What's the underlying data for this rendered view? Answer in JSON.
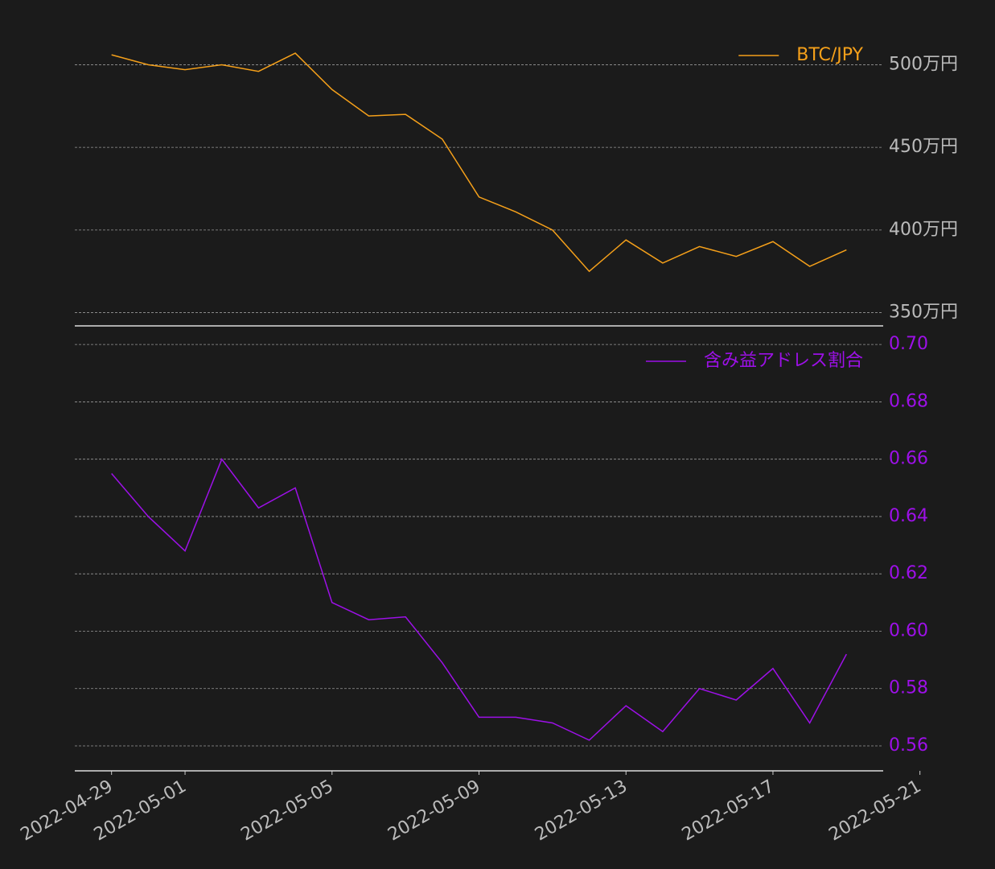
{
  "chart_data": [
    {
      "type": "line",
      "x": [
        "2022-04-29",
        "2022-04-30",
        "2022-05-01",
        "2022-05-02",
        "2022-05-03",
        "2022-05-04",
        "2022-05-05",
        "2022-05-06",
        "2022-05-07",
        "2022-05-08",
        "2022-05-09",
        "2022-05-10",
        "2022-05-11",
        "2022-05-12",
        "2022-05-13",
        "2022-05-14",
        "2022-05-15",
        "2022-05-16",
        "2022-05-17",
        "2022-05-18",
        "2022-05-19"
      ],
      "series": [
        {
          "name": "BTC/JPY",
          "color": "#f5a01a",
          "values": [
            506,
            500,
            497,
            500,
            496,
            507,
            485,
            469,
            470,
            455,
            420,
            411,
            400,
            375,
            394,
            380,
            390,
            384,
            393,
            378,
            388
          ]
        }
      ],
      "xlim": [
        "2022-04-28",
        "2022-05-20"
      ],
      "ylim": [
        342,
        527
      ],
      "yticks": [
        {
          "value": 350,
          "label": "350万円"
        },
        {
          "value": 400,
          "label": "400万円"
        },
        {
          "value": 450,
          "label": "450万円"
        },
        {
          "value": 500,
          "label": "500万円"
        }
      ],
      "ytick_color": "#bbbbbb",
      "grid": true,
      "legend": "upper right"
    },
    {
      "type": "line",
      "x": [
        "2022-04-29",
        "2022-04-30",
        "2022-05-01",
        "2022-05-02",
        "2022-05-03",
        "2022-05-04",
        "2022-05-05",
        "2022-05-06",
        "2022-05-07",
        "2022-05-08",
        "2022-05-09",
        "2022-05-10",
        "2022-05-11",
        "2022-05-12",
        "2022-05-13",
        "2022-05-14",
        "2022-05-15",
        "2022-05-16",
        "2022-05-17",
        "2022-05-18",
        "2022-05-19"
      ],
      "series": [
        {
          "name": "含み益アドレス割合",
          "color": "#9d10e8",
          "values": [
            0.655,
            0.64,
            0.628,
            0.66,
            0.643,
            0.65,
            0.61,
            0.604,
            0.605,
            0.589,
            0.57,
            0.57,
            0.568,
            0.562,
            0.574,
            0.565,
            0.58,
            0.576,
            0.587,
            0.568,
            0.592
          ]
        }
      ],
      "xlim": [
        "2022-04-28",
        "2022-05-20"
      ],
      "xticks": [
        "2022-04-29",
        "2022-05-01",
        "2022-05-05",
        "2022-05-09",
        "2022-05-13",
        "2022-05-17",
        "2022-05-21"
      ],
      "ylim": [
        0.5513,
        0.7065
      ],
      "yticks": [
        0.56,
        0.58,
        {
          "value": 0.6,
          "label": "0.60"
        },
        0.62,
        0.64,
        0.66,
        0.68,
        {
          "value": 0.7,
          "label": "0.70"
        }
      ],
      "ytick_color": "#9d10e8",
      "grid": true,
      "legend": "upper right"
    }
  ]
}
